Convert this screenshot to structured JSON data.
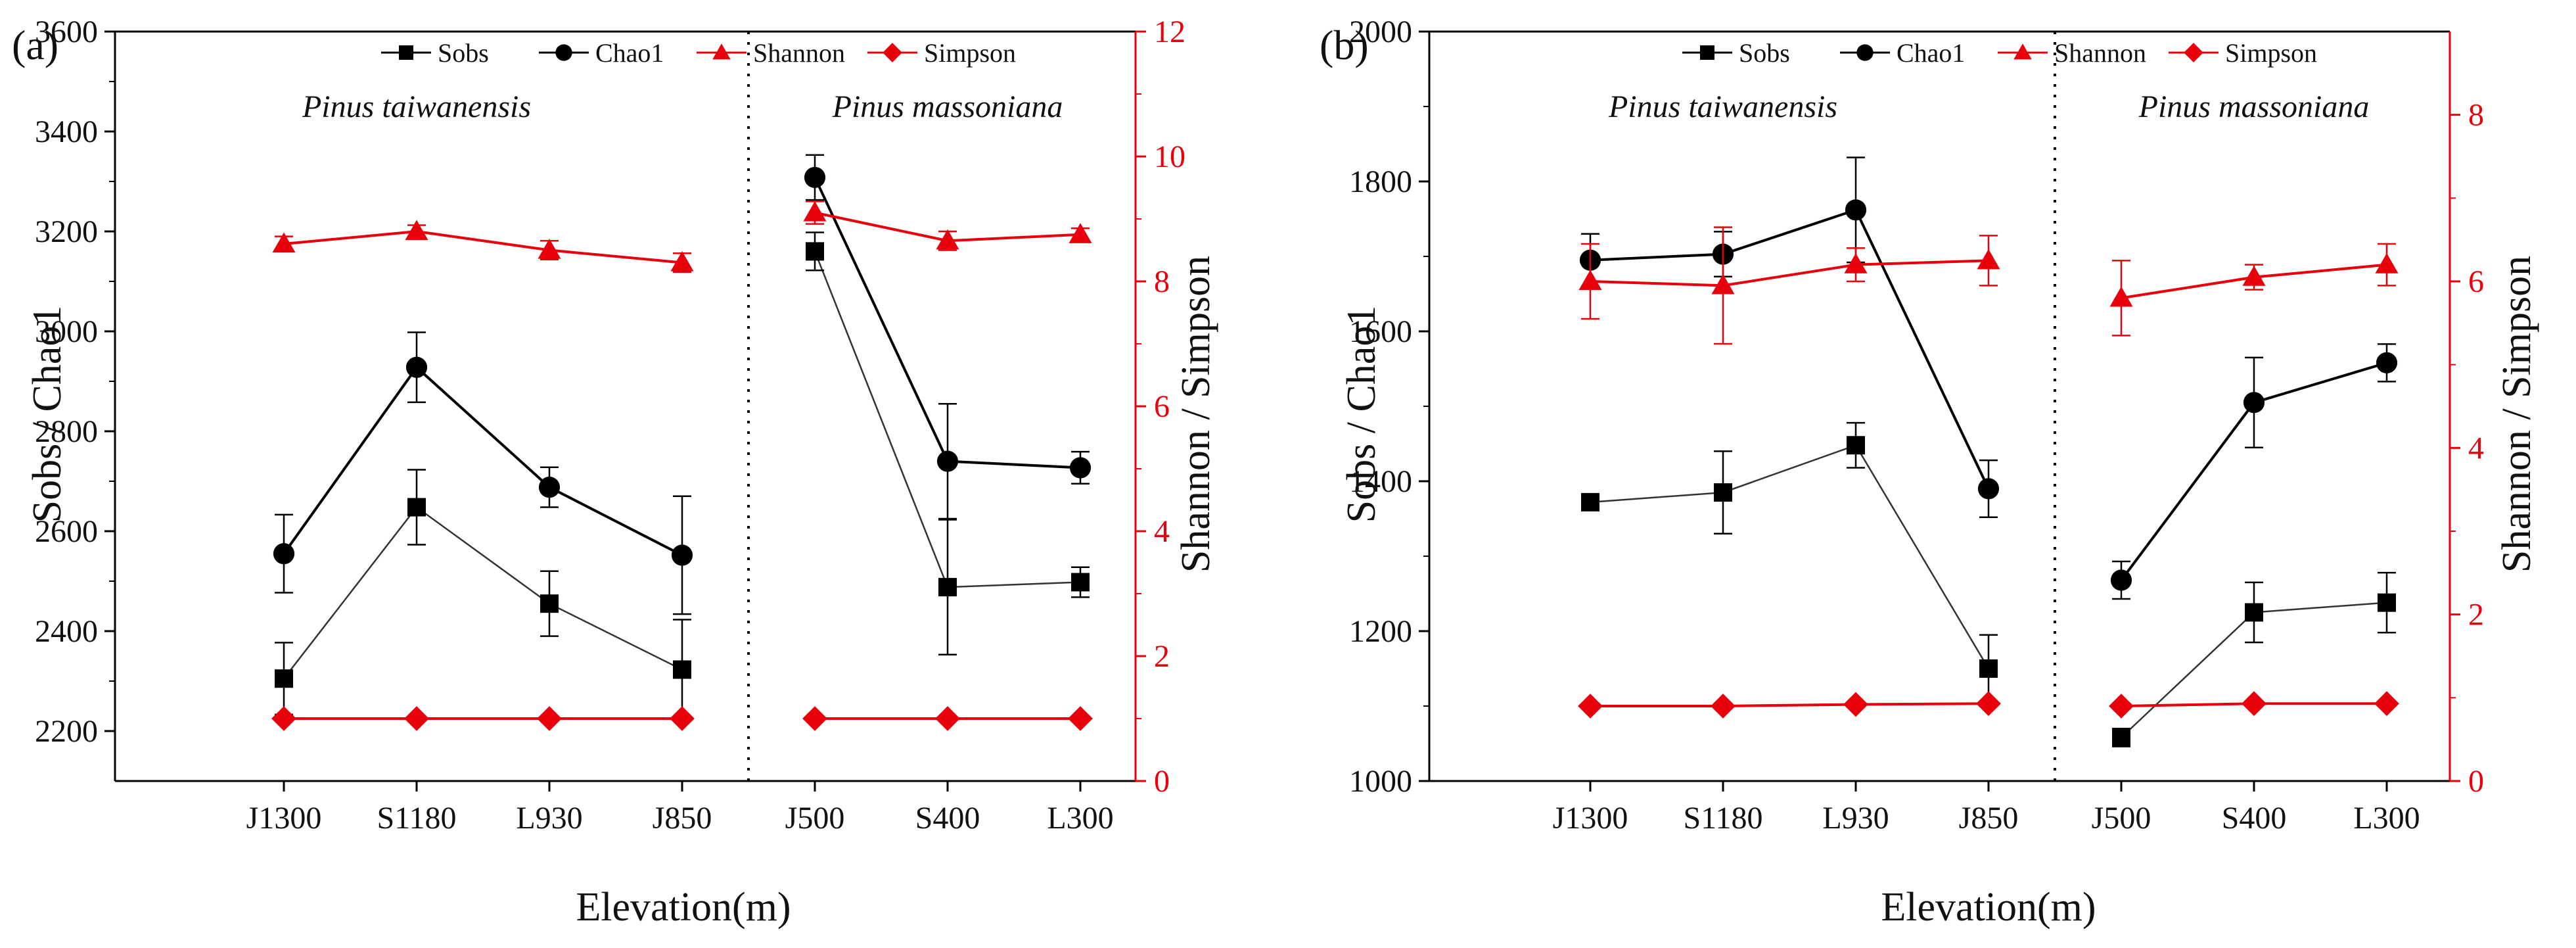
{
  "colors": {
    "black": "#000000",
    "red": "#e8000b",
    "dark_gray": "#333333"
  },
  "legend": [
    "Sobs",
    "Chao1",
    "Shannon",
    "Simpson"
  ],
  "chart_data": [
    {
      "type": "line",
      "panel_label": "(a)",
      "categories": [
        "J1300",
        "S1180",
        "L930",
        "J850",
        "J500",
        "S400",
        "L300"
      ],
      "groups": [
        {
          "label": "Pinus taiwanensis",
          "categories": [
            "J1300",
            "S1180",
            "L930",
            "J850"
          ]
        },
        {
          "label": "Pinus massoniana",
          "categories": [
            "J500",
            "S400",
            "L300"
          ]
        }
      ],
      "xlabel": "Elevation(m)",
      "ylabel_left": "Sobs / Chao1",
      "ylabel_right": "Shannon / Simpson",
      "ylim_left": [
        2100,
        3600
      ],
      "yticks_left": [
        2200,
        2400,
        2600,
        2800,
        3000,
        3200,
        3400,
        3600
      ],
      "ylim_right": [
        0,
        12
      ],
      "yticks_right": [
        0,
        2,
        4,
        6,
        8,
        10,
        12
      ],
      "series": [
        {
          "name": "Sobs",
          "axis": "left",
          "marker": "square",
          "color": "#000000",
          "values": [
            2305,
            2648,
            2455,
            2323,
            3160,
            2488,
            2498
          ],
          "errors": [
            72,
            75,
            65,
            100,
            38,
            135,
            30
          ]
        },
        {
          "name": "Chao1",
          "axis": "left",
          "marker": "circle",
          "color": "#000000",
          "values": [
            2555,
            2928,
            2688,
            2552,
            3308,
            2740,
            2727
          ],
          "errors": [
            78,
            70,
            40,
            118,
            45,
            115,
            32
          ]
        },
        {
          "name": "Shannon",
          "axis": "right",
          "marker": "triangle",
          "color": "#e8000b",
          "values": [
            8.6,
            8.8,
            8.5,
            8.3,
            9.1,
            8.65,
            8.75
          ],
          "errors": [
            0.12,
            0.1,
            0.15,
            0.15,
            0.18,
            0.15,
            0.1
          ]
        },
        {
          "name": "Simpson",
          "axis": "right",
          "marker": "diamond",
          "color": "#e8000b",
          "values": [
            1.0,
            1.0,
            1.0,
            1.0,
            1.0,
            1.0,
            1.0
          ],
          "errors": [
            0,
            0,
            0,
            0,
            0,
            0,
            0
          ]
        }
      ]
    },
    {
      "type": "line",
      "panel_label": "(b)",
      "categories": [
        "J1300",
        "S1180",
        "L930",
        "J850",
        "J500",
        "S400",
        "L300"
      ],
      "groups": [
        {
          "label": "Pinus taiwanensis",
          "categories": [
            "J1300",
            "S1180",
            "L930",
            "J850"
          ]
        },
        {
          "label": "Pinus massoniana",
          "categories": [
            "J500",
            "S400",
            "L300"
          ]
        }
      ],
      "xlabel": "Elevation(m)",
      "ylabel_left": "Sobs / Chao1",
      "ylabel_right": "Shannon / Simpson",
      "ylim_left": [
        1000,
        2000
      ],
      "yticks_left": [
        1000,
        1200,
        1400,
        1600,
        1800,
        2000
      ],
      "ylim_right": [
        0,
        9
      ],
      "yticks_right": [
        0,
        2,
        4,
        6,
        8
      ],
      "series": [
        {
          "name": "Sobs",
          "axis": "left",
          "marker": "square",
          "color": "#000000",
          "values": [
            1372,
            1385,
            1448,
            1150,
            1058,
            1225,
            1238
          ],
          "errors": [
            5,
            55,
            30,
            45,
            12,
            40,
            40
          ]
        },
        {
          "name": "Chao1",
          "axis": "left",
          "marker": "circle",
          "color": "#000000",
          "values": [
            1695,
            1703,
            1762,
            1390,
            1268,
            1505,
            1558
          ],
          "errors": [
            35,
            30,
            70,
            38,
            25,
            60,
            25
          ]
        },
        {
          "name": "Shannon",
          "axis": "right",
          "marker": "triangle",
          "color": "#e8000b",
          "values": [
            6.0,
            5.95,
            6.2,
            6.25,
            5.8,
            6.05,
            6.2
          ],
          "errors": [
            0.45,
            0.7,
            0.2,
            0.3,
            0.45,
            0.15,
            0.25
          ]
        },
        {
          "name": "Simpson",
          "axis": "right",
          "marker": "diamond",
          "color": "#e8000b",
          "values": [
            0.9,
            0.9,
            0.92,
            0.93,
            0.9,
            0.93,
            0.93
          ],
          "errors": [
            0,
            0,
            0,
            0,
            0,
            0,
            0
          ]
        }
      ]
    }
  ]
}
